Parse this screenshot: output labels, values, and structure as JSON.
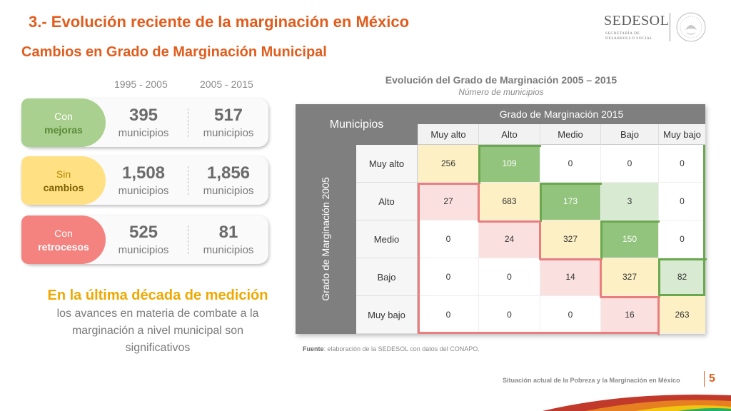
{
  "header": {
    "title": "3.- Evolución reciente de la marginación en México",
    "subtitle": "Cambios en Grado de Marginación Municipal"
  },
  "logo": {
    "name": "SEDESOL",
    "line1": "SECRETARÍA DE",
    "line2": "DESARROLLO SOCIAL"
  },
  "periods": [
    "1995 - 2005",
    "2005 - 2015"
  ],
  "cards": [
    {
      "word1": "Con",
      "word2": "mejoras",
      "v1": "395",
      "v2": "517",
      "unit": "municipios",
      "color": "#a9d08e",
      "text_color": "#ffffff",
      "bold_color": "#5a8a3a"
    },
    {
      "word1": "Sin",
      "word2": "cambios",
      "v1": "1,508",
      "v2": "1,856",
      "unit": "municipios",
      "color": "#ffe082",
      "text_color": "#b08800",
      "bold_color": "#7a6000"
    },
    {
      "word1": "Con",
      "word2": "retrocesos",
      "v1": "525",
      "v2": "81",
      "unit": "municipios",
      "color": "#f4827f",
      "text_color": "#ffffff",
      "bold_color": "#ffffff"
    }
  ],
  "conclusion": {
    "highlight": "En la última década de medición",
    "rest": " los avances en materia de combate a la marginación a nivel municipal son significativos"
  },
  "matrix": {
    "title": "Evolución del Grado de Marginación 2005 – 2015",
    "subtitle": "Número de municipios",
    "corner_label": "Municipios",
    "col_header": "Grado de Marginación 2015",
    "row_header": "Grado de Marginación 2005",
    "columns": [
      "Muy alto",
      "Alto",
      "Medio",
      "Bajo",
      "Muy bajo"
    ],
    "rows": [
      {
        "label": "Muy alto",
        "values": [
          "256",
          "109",
          "0",
          "0",
          "0"
        ]
      },
      {
        "label": "Alto",
        "values": [
          "27",
          "683",
          "173",
          "3",
          "0"
        ]
      },
      {
        "label": "Medio",
        "values": [
          "0",
          "24",
          "327",
          "150",
          "0"
        ]
      },
      {
        "label": "Bajo",
        "values": [
          "0",
          "0",
          "14",
          "327",
          "82"
        ]
      },
      {
        "label": "Muy bajo",
        "values": [
          "0",
          "0",
          "0",
          "16",
          "263"
        ]
      }
    ],
    "colors": {
      "diagonal": "#fdf0c4",
      "improve_strong": "#93c47d",
      "improve_light": "#d9ead3",
      "worse": "#fbe0e0",
      "green_border": "#6aa84f",
      "red_border": "#ea7e7e"
    }
  },
  "source": {
    "label": "Fuente",
    "text": ": elaboración de la SEDESOL con datos del CONAPO."
  },
  "footer": {
    "text": "Situación actual de la Pobreza y la Marginación en México",
    "page": "5"
  }
}
